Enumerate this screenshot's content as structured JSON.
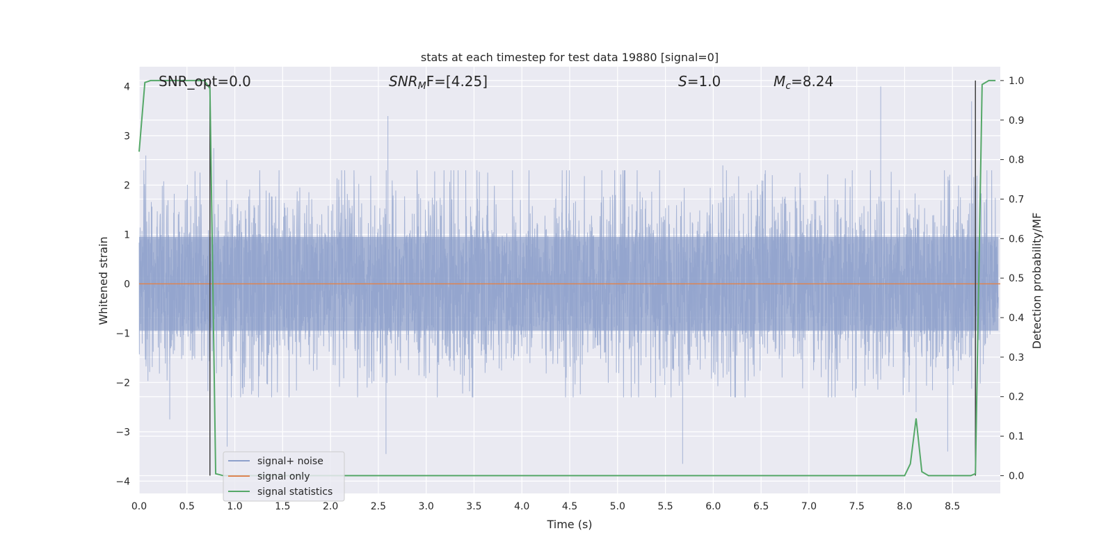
{
  "chart_data": {
    "type": "line",
    "title": "stats at each timestep for test data 19880 [signal=0]",
    "xlabel": "Time (s)",
    "ylabel": "Whitened strain",
    "y2label": "Detection probability/MF",
    "xlim": [
      0.0,
      9.0
    ],
    "ylim": [
      -4.25,
      4.4
    ],
    "y2lim": [
      -0.045,
      1.035
    ],
    "grid": true,
    "legend_position": "lower-left",
    "x_ticks": [
      "0.0",
      "0.5",
      "1.0",
      "1.5",
      "2.0",
      "2.5",
      "3.0",
      "3.5",
      "4.0",
      "4.5",
      "5.0",
      "5.5",
      "6.0",
      "6.5",
      "7.0",
      "7.5",
      "8.0",
      "8.5"
    ],
    "y_ticks": [
      "4",
      "3",
      "2",
      "1",
      "0",
      "−1",
      "−2",
      "−3",
      "−4"
    ],
    "y2_ticks": [
      "1.0",
      "0.9",
      "0.8",
      "0.7",
      "0.6",
      "0.5",
      "0.4",
      "0.3",
      "0.2",
      "0.1",
      "0.0"
    ],
    "annotations": {
      "snr_opt": "SNR_opt=0.0",
      "snr_mf_prefix": "SNR",
      "snr_mf_sub": "M",
      "snr_mf_suffix": "F=[4.25]",
      "s_var": "S",
      "s_value": "=1.0",
      "mc_var": "M",
      "mc_sub": "c",
      "mc_value": "=8.24"
    },
    "series": [
      {
        "name": "signal+ noise",
        "color": "#8da0cb",
        "axis": "left",
        "description_peaks": [
          [
            0.07,
            2.6
          ],
          [
            0.32,
            -2.75
          ],
          [
            0.78,
            2.75
          ],
          [
            0.92,
            -3.3
          ],
          [
            2.58,
            -3.45
          ],
          [
            2.6,
            3.4
          ],
          [
            5.68,
            -3.65
          ],
          [
            6.1,
            2.4
          ],
          [
            7.75,
            4.0
          ],
          [
            8.12,
            -2.6
          ],
          [
            8.45,
            -3.4
          ],
          [
            8.7,
            3.7
          ]
        ],
        "typical_range": [
          -2.0,
          2.0
        ]
      },
      {
        "name": "signal only",
        "color": "#dd8452",
        "axis": "left",
        "x": [
          0.0,
          9.0
        ],
        "y": [
          0.0,
          0.0
        ]
      },
      {
        "name": "signal statistics",
        "color": "#55a868",
        "axis": "right",
        "x": [
          0.0,
          0.06,
          0.12,
          0.2,
          0.4,
          0.6,
          0.68,
          0.74,
          0.8,
          0.88,
          1.0,
          3.0,
          6.0,
          7.5,
          8.0,
          8.06,
          8.12,
          8.18,
          8.25,
          8.4,
          8.69,
          8.74,
          8.81,
          8.88,
          8.95
        ],
        "y": [
          0.82,
          0.995,
          1.0,
          1.0,
          1.0,
          1.0,
          1.0,
          0.98,
          0.005,
          0.0,
          0.0,
          0.0,
          0.0,
          0.0,
          0.0,
          0.03,
          0.145,
          0.01,
          0.0,
          0.0,
          0.0,
          0.005,
          0.99,
          1.0,
          1.0
        ]
      }
    ],
    "vertical_markers": [
      {
        "x": 0.74,
        "color": "#3f3f3f"
      },
      {
        "x": 8.74,
        "color": "#3f3f3f"
      }
    ]
  }
}
